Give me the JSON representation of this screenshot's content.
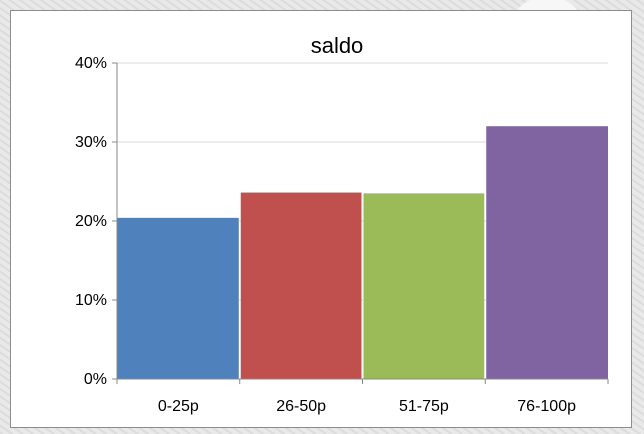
{
  "chart_data": {
    "type": "bar",
    "title": "saldo",
    "xlabel": "",
    "ylabel": "",
    "categories": [
      "0-25p",
      "26-50p",
      "51-75p",
      "76-100p"
    ],
    "values": [
      0.204,
      0.236,
      0.235,
      0.32
    ],
    "colors": [
      "#4f81bd",
      "#c0504d",
      "#9bbb59",
      "#8064a2"
    ],
    "ylim": [
      0,
      0.4
    ],
    "yticks": [
      0,
      0.1,
      0.2,
      0.3,
      0.4
    ],
    "ytick_labels": [
      "0%",
      "10%",
      "20%",
      "30%",
      "40%"
    ],
    "grid": true,
    "legend": "none"
  }
}
